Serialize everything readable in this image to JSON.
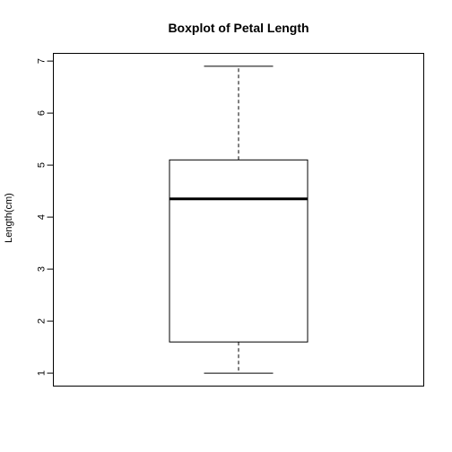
{
  "chart_data": {
    "type": "boxplot",
    "title": "Boxplot of Petal Length",
    "xlabel": "",
    "ylabel": "Length(cm)",
    "ylim": [
      0.76,
      7.14
    ],
    "yticks": [
      1,
      2,
      3,
      4,
      5,
      6,
      7
    ],
    "ytick_labels": [
      "1",
      "2",
      "3",
      "4",
      "5",
      "6",
      "7"
    ],
    "box": {
      "min": 1.0,
      "q1": 1.6,
      "median": 4.35,
      "q3": 5.1,
      "max": 6.9
    },
    "grid": false,
    "legend": "none"
  }
}
